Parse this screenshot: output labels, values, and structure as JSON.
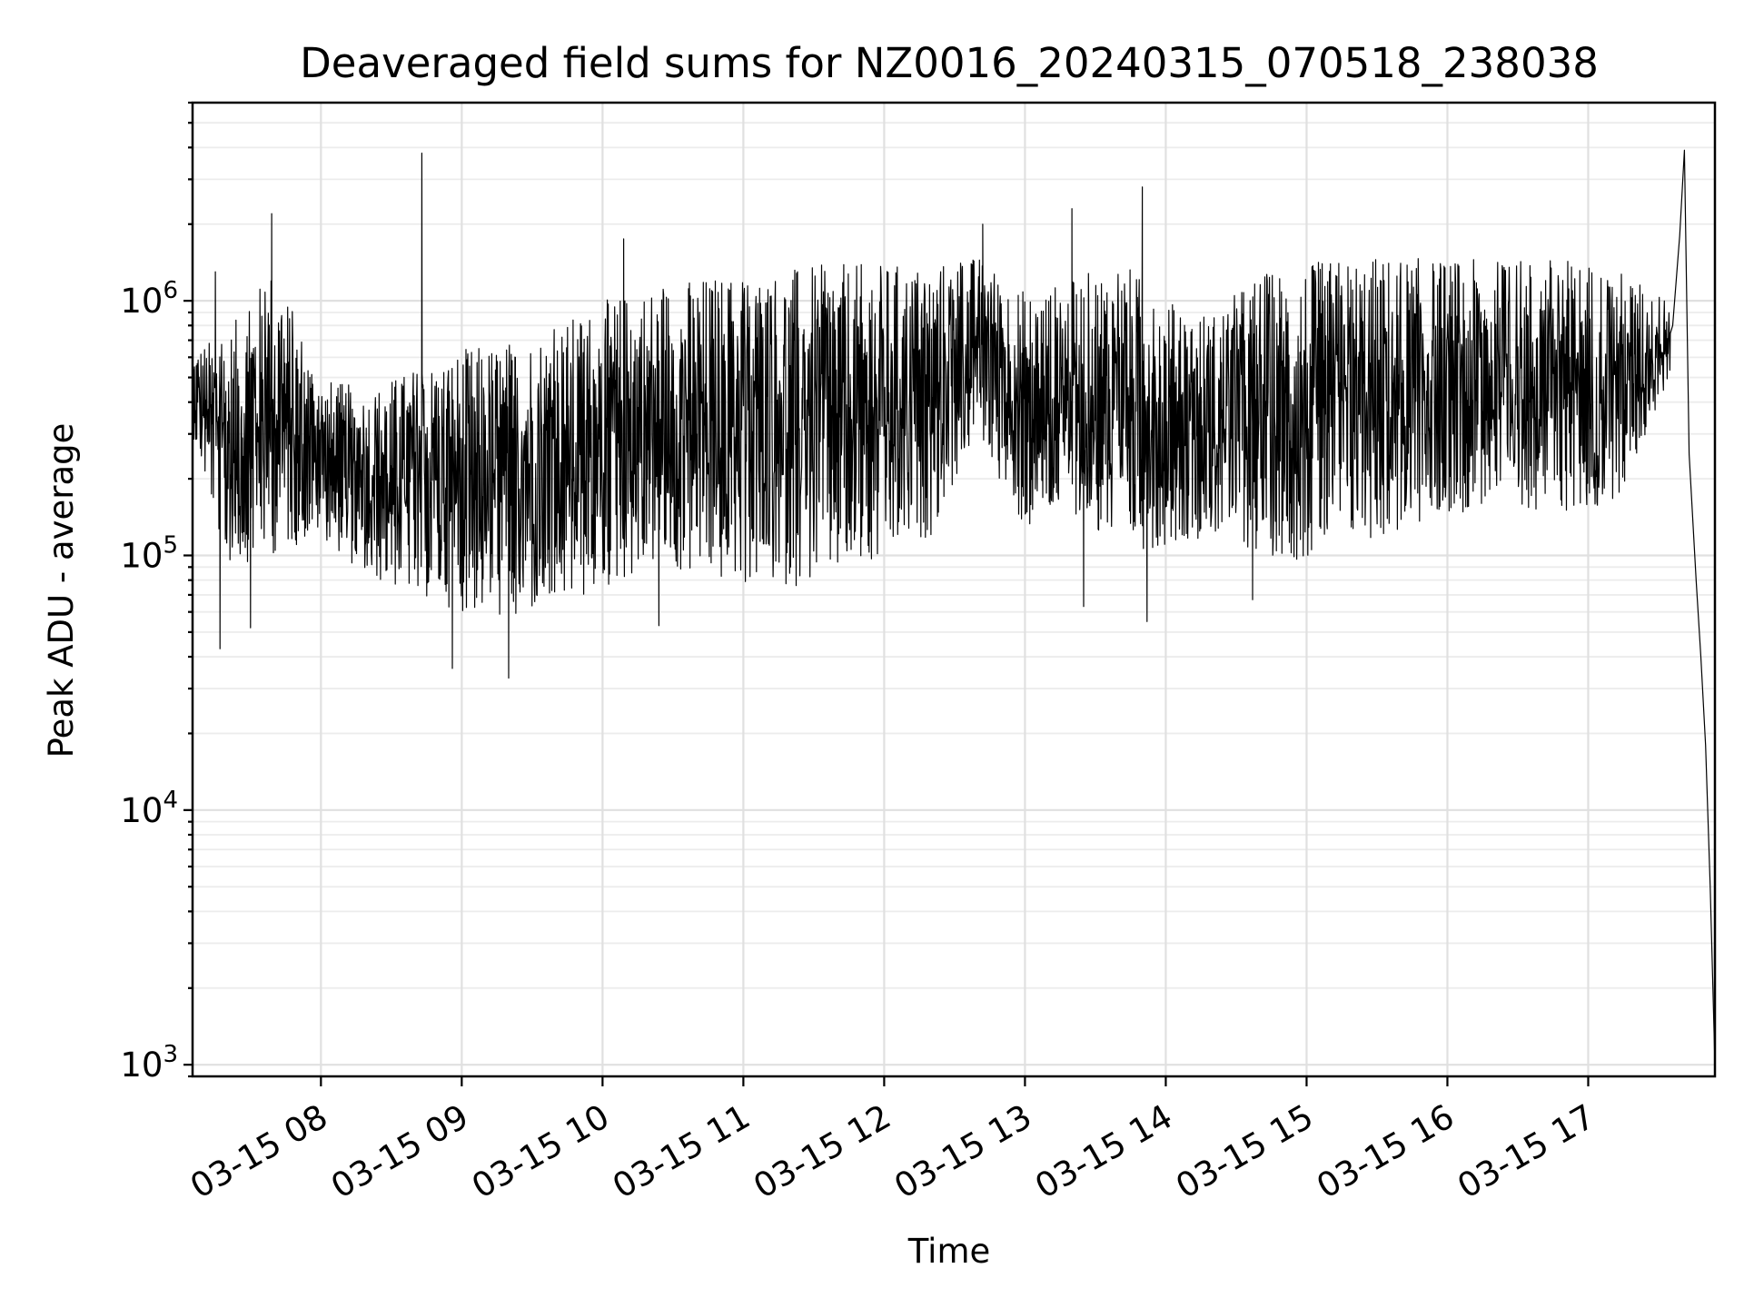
{
  "chart_data": {
    "type": "line",
    "title": "Deaveraged field sums for NZ0016_20240315_070518_238038",
    "xlabel": "Time",
    "ylabel": "Peak ADU - average",
    "yscale": "log",
    "grid": true,
    "grid_minor": true,
    "xlim": [
      "2024-03-15T07:05:18",
      "2024-03-15T17:54:00"
    ],
    "ylim": [
      900,
      6000000
    ],
    "x_ticks": [
      {
        "value": "2024-03-15T08:00:00",
        "label": "03-15 08"
      },
      {
        "value": "2024-03-15T09:00:00",
        "label": "03-15 09"
      },
      {
        "value": "2024-03-15T10:00:00",
        "label": "03-15 10"
      },
      {
        "value": "2024-03-15T11:00:00",
        "label": "03-15 11"
      },
      {
        "value": "2024-03-15T12:00:00",
        "label": "03-15 12"
      },
      {
        "value": "2024-03-15T13:00:00",
        "label": "03-15 13"
      },
      {
        "value": "2024-03-15T14:00:00",
        "label": "03-15 14"
      },
      {
        "value": "2024-03-15T15:00:00",
        "label": "03-15 15"
      },
      {
        "value": "2024-03-15T16:00:00",
        "label": "03-15 16"
      },
      {
        "value": "2024-03-15T17:00:00",
        "label": "03-15 17"
      }
    ],
    "y_ticks": [
      {
        "value": 1000,
        "base": "10",
        "exp": "3"
      },
      {
        "value": 10000,
        "base": "10",
        "exp": "4"
      },
      {
        "value": 100000,
        "base": "10",
        "exp": "5"
      },
      {
        "value": 1000000,
        "base": "10",
        "exp": "6"
      }
    ],
    "series": [
      {
        "color": "#000000",
        "envelope": [
          {
            "x": "2024-03-15T07:05:18",
            "low": 300000,
            "high": 650000
          },
          {
            "x": "2024-03-15T07:20:00",
            "low": 90000,
            "high": 750000
          },
          {
            "x": "2024-03-15T07:40:00",
            "low": 100000,
            "high": 1400000
          },
          {
            "x": "2024-03-15T08:00:00",
            "low": 120000,
            "high": 500000
          },
          {
            "x": "2024-03-15T08:20:00",
            "low": 80000,
            "high": 450000
          },
          {
            "x": "2024-03-15T08:40:00",
            "low": 70000,
            "high": 550000
          },
          {
            "x": "2024-03-15T09:00:00",
            "low": 60000,
            "high": 650000
          },
          {
            "x": "2024-03-15T09:20:00",
            "low": 55000,
            "high": 700000
          },
          {
            "x": "2024-03-15T09:40:00",
            "low": 60000,
            "high": 800000
          },
          {
            "x": "2024-03-15T10:00:00",
            "low": 70000,
            "high": 1000000
          },
          {
            "x": "2024-03-15T10:20:00",
            "low": 90000,
            "high": 1150000
          },
          {
            "x": "2024-03-15T10:40:00",
            "low": 80000,
            "high": 1250000
          },
          {
            "x": "2024-03-15T11:00:00",
            "low": 75000,
            "high": 1300000
          },
          {
            "x": "2024-03-15T11:20:00",
            "low": 75000,
            "high": 1350000
          },
          {
            "x": "2024-03-15T11:40:00",
            "low": 80000,
            "high": 1400000
          },
          {
            "x": "2024-03-15T12:00:00",
            "low": 90000,
            "high": 1400000
          },
          {
            "x": "2024-03-15T12:20:00",
            "low": 120000,
            "high": 1400000
          },
          {
            "x": "2024-03-15T12:40:00",
            "low": 300000,
            "high": 1500000
          },
          {
            "x": "2024-03-15T13:00:00",
            "low": 120000,
            "high": 1100000
          },
          {
            "x": "2024-03-15T13:20:00",
            "low": 150000,
            "high": 1200000
          },
          {
            "x": "2024-03-15T13:40:00",
            "low": 100000,
            "high": 1500000
          },
          {
            "x": "2024-03-15T14:00:00",
            "low": 110000,
            "high": 1000000
          },
          {
            "x": "2024-03-15T14:20:00",
            "low": 120000,
            "high": 900000
          },
          {
            "x": "2024-03-15T14:40:00",
            "low": 100000,
            "high": 1300000
          },
          {
            "x": "2024-03-15T15:00:00",
            "low": 95000,
            "high": 1400000
          },
          {
            "x": "2024-03-15T15:20:00",
            "low": 110000,
            "high": 1500000
          },
          {
            "x": "2024-03-15T15:40:00",
            "low": 120000,
            "high": 1500000
          },
          {
            "x": "2024-03-15T16:00:00",
            "low": 140000,
            "high": 1450000
          },
          {
            "x": "2024-03-15T16:20:00",
            "low": 160000,
            "high": 1450000
          },
          {
            "x": "2024-03-15T16:40:00",
            "low": 150000,
            "high": 1500000
          },
          {
            "x": "2024-03-15T17:00:00",
            "low": 140000,
            "high": 1450000
          },
          {
            "x": "2024-03-15T17:15:00",
            "low": 180000,
            "high": 1300000
          },
          {
            "x": "2024-03-15T17:35:00",
            "low": 500000,
            "high": 1000000
          }
        ],
        "spikes": [
          {
            "x": "2024-03-15T07:15:00",
            "y": 1300000
          },
          {
            "x": "2024-03-15T07:17:00",
            "y": 43000
          },
          {
            "x": "2024-03-15T07:39:00",
            "y": 2200000
          },
          {
            "x": "2024-03-15T07:30:00",
            "y": 52000
          },
          {
            "x": "2024-03-15T08:43:00",
            "y": 3800000
          },
          {
            "x": "2024-03-15T08:56:00",
            "y": 36000
          },
          {
            "x": "2024-03-15T09:20:00",
            "y": 33000
          },
          {
            "x": "2024-03-15T10:09:00",
            "y": 1750000
          },
          {
            "x": "2024-03-15T10:24:00",
            "y": 53000
          },
          {
            "x": "2024-03-15T12:42:00",
            "y": 2000000
          },
          {
            "x": "2024-03-15T13:20:00",
            "y": 2300000
          },
          {
            "x": "2024-03-15T13:25:00",
            "y": 63000
          },
          {
            "x": "2024-03-15T13:50:00",
            "y": 2800000
          },
          {
            "x": "2024-03-15T13:52:00",
            "y": 55000
          },
          {
            "x": "2024-03-15T14:37:00",
            "y": 67000
          }
        ],
        "tail": [
          {
            "x": "2024-03-15T17:36:00",
            "y": 800000
          },
          {
            "x": "2024-03-15T17:39:00",
            "y": 1800000
          },
          {
            "x": "2024-03-15T17:41:00",
            "y": 3900000
          },
          {
            "x": "2024-03-15T17:43:00",
            "y": 250000
          },
          {
            "x": "2024-03-15T17:46:00",
            "y": 80000
          },
          {
            "x": "2024-03-15T17:48:00",
            "y": 40000
          },
          {
            "x": "2024-03-15T17:50:00",
            "y": 18000
          },
          {
            "x": "2024-03-15T17:52:00",
            "y": 5000
          },
          {
            "x": "2024-03-15T17:54:00",
            "y": 1000
          }
        ]
      }
    ]
  }
}
